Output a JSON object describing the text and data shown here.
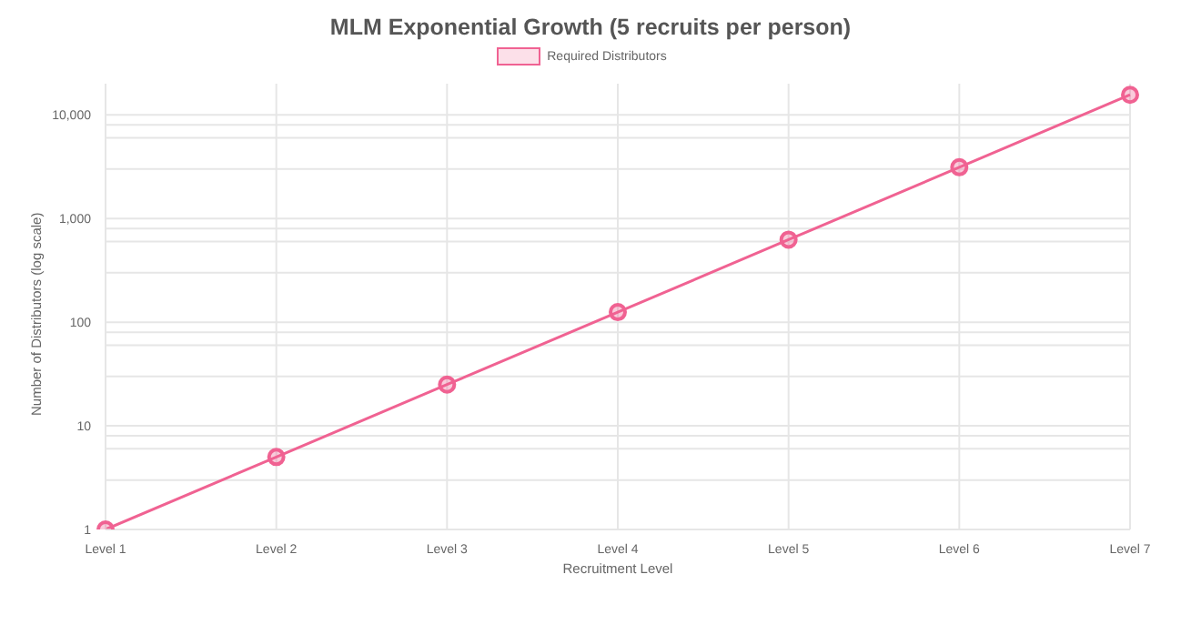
{
  "chart_data": {
    "type": "line",
    "title": "MLM Exponential Growth (5 recruits per person)",
    "xlabel": "Recruitment Level",
    "ylabel": "Number of Distributors (log scale)",
    "categories": [
      "Level 1",
      "Level 2",
      "Level 3",
      "Level 4",
      "Level 5",
      "Level 6",
      "Level 7"
    ],
    "series": [
      {
        "name": "Required Distributors",
        "color": "#f06292",
        "values": [
          1,
          5,
          25,
          125,
          625,
          3125,
          15625
        ]
      }
    ],
    "log": "y",
    "ylim": [
      1,
      20000
    ],
    "yticks": [
      1,
      {
        "value": 3,
        "label": null
      },
      {
        "value": 6,
        "label": null
      },
      {
        "value": 8,
        "label": null
      },
      10,
      {
        "value": 30,
        "label": null
      },
      {
        "value": 60,
        "label": null
      },
      {
        "value": 80,
        "label": null
      },
      100,
      {
        "value": 300,
        "label": null
      },
      {
        "value": 600,
        "label": null
      },
      {
        "value": 800,
        "label": null
      },
      {
        "value": 1000,
        "label": "1,000"
      },
      {
        "value": 3000,
        "label": null
      },
      {
        "value": 6000,
        "label": null
      },
      {
        "value": 8000,
        "label": null
      },
      {
        "value": 10000,
        "label": "10,000"
      }
    ],
    "grid": true,
    "legend": "top",
    "marker": "circle",
    "line_style": "solid"
  }
}
